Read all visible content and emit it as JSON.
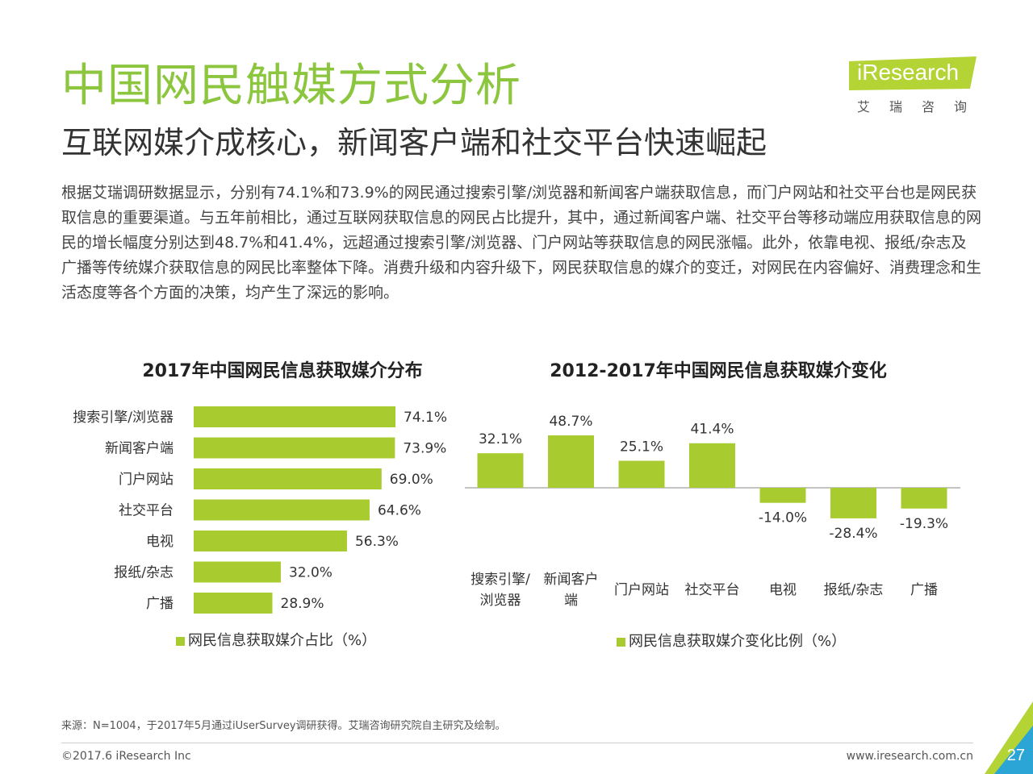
{
  "header": {
    "title": "中国网民触媒方式分析",
    "subtitle": "互联网媒介成核心，新闻客户端和社交平台快速崛起"
  },
  "logo": {
    "brand": "iResearch",
    "chinese": "艾瑞咨询",
    "color": "#b4d334"
  },
  "body_text": "根据艾瑞调研数据显示，分别有74.1%和73.9%的网民通过搜索引擎/浏览器和新闻客户端获取信息，而门户网站和社交平台也是网民获取信息的重要渠道。与五年前相比，通过互联网获取信息的网民占比提升，其中，通过新闻客户端、社交平台等移动端应用获取信息的网民的增长幅度分别达到48.7%和41.4%，远超通过搜索引擎/浏览器、门户网站等获取信息的网民涨幅。此外，依靠电视、报纸/杂志及广播等传统媒介获取信息的网民比率整体下降。消费升级和内容升级下，网民获取信息的媒介的变迁，对网民在内容偏好、消费理念和生活态度等各个方面的决策，均产生了深远的影响。",
  "colors": {
    "accent": "#8cc63f",
    "bar": "#a8cc2f",
    "corner_dark": "#2aa5d6"
  },
  "chart_data": [
    {
      "type": "bar",
      "orientation": "horizontal",
      "title": "2017年中国网民信息获取媒介分布",
      "categories": [
        "搜索引擎/浏览器",
        "新闻客户端",
        "门户网站",
        "社交平台",
        "电视",
        "报纸/杂志",
        "广播"
      ],
      "values": [
        74.1,
        73.9,
        69.0,
        64.6,
        56.3,
        32.0,
        28.9
      ],
      "data_labels": [
        "74.1%",
        "73.9%",
        "69.0%",
        "64.6%",
        "56.3%",
        "32.0%",
        "28.9%"
      ],
      "series": [
        {
          "name": "网民信息获取媒介占比（%）",
          "values": [
            74.1,
            73.9,
            69.0,
            64.6,
            56.3,
            32.0,
            28.9
          ]
        }
      ],
      "xlim": [
        0,
        100
      ],
      "legend": "bottom"
    },
    {
      "type": "bar",
      "orientation": "vertical",
      "title": "2012-2017年中国网民信息获取媒介变化",
      "categories": [
        "搜索引擎/浏览器",
        "新闻客户端",
        "门户网站",
        "社交平台",
        "电视",
        "报纸/杂志",
        "广播"
      ],
      "category_lines": [
        [
          "搜索引擎/",
          "浏览器"
        ],
        [
          "新闻客户",
          "端"
        ],
        [
          "门户网站"
        ],
        [
          "社交平台"
        ],
        [
          "电视"
        ],
        [
          "报纸/杂志"
        ],
        [
          "广播"
        ]
      ],
      "values": [
        32.1,
        48.7,
        25.1,
        41.4,
        -14.0,
        -28.4,
        -19.3
      ],
      "data_labels": [
        "32.1%",
        "48.7%",
        "25.1%",
        "41.4%",
        "-14.0%",
        "-28.4%",
        "-19.3%"
      ],
      "series": [
        {
          "name": "网民信息获取媒介变化比例（%）",
          "values": [
            32.1,
            48.7,
            25.1,
            41.4,
            -14.0,
            -28.4,
            -19.3
          ]
        }
      ],
      "legend": "bottom"
    }
  ],
  "footer": {
    "source": "来源：N=1004，于2017年5月通过iUserSurvey调研获得。艾瑞咨询研究院自主研究及绘制。",
    "copyright": "©2017.6 iResearch Inc",
    "website": "www.iresearch.com.cn",
    "page_number": "27"
  }
}
